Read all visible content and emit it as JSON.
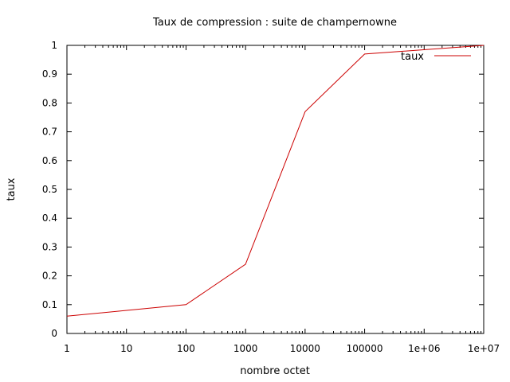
{
  "chart_data": {
    "type": "line",
    "title": "Taux de compression : suite de champernowne",
    "xlabel": "nombre octet",
    "ylabel": "taux",
    "x_scale": "log",
    "xlim": [
      1,
      10000000
    ],
    "ylim": [
      0,
      1
    ],
    "x_ticks": [
      {
        "value": 1,
        "label": "1"
      },
      {
        "value": 10,
        "label": "10"
      },
      {
        "value": 100,
        "label": "100"
      },
      {
        "value": 1000,
        "label": "1000"
      },
      {
        "value": 10000,
        "label": "10000"
      },
      {
        "value": 100000,
        "label": "100000"
      },
      {
        "value": 1000000,
        "label": "1e+06"
      },
      {
        "value": 10000000,
        "label": "1e+07"
      }
    ],
    "y_ticks": [
      {
        "value": 0,
        "label": "0"
      },
      {
        "value": 0.1,
        "label": "0.1"
      },
      {
        "value": 0.2,
        "label": "0.2"
      },
      {
        "value": 0.3,
        "label": "0.3"
      },
      {
        "value": 0.4,
        "label": "0.4"
      },
      {
        "value": 0.5,
        "label": "0.5"
      },
      {
        "value": 0.6,
        "label": "0.6"
      },
      {
        "value": 0.7,
        "label": "0.7"
      },
      {
        "value": 0.8,
        "label": "0.8"
      },
      {
        "value": 0.9,
        "label": "0.9"
      },
      {
        "value": 1,
        "label": "1"
      }
    ],
    "grid": false,
    "legend_position": "top-right",
    "series": [
      {
        "name": "taux",
        "color": "#cc0000",
        "x": [
          1,
          100,
          1000,
          10000,
          100000,
          10000000
        ],
        "y": [
          0.06,
          0.1,
          0.24,
          0.77,
          0.97,
          1.0
        ]
      }
    ]
  }
}
